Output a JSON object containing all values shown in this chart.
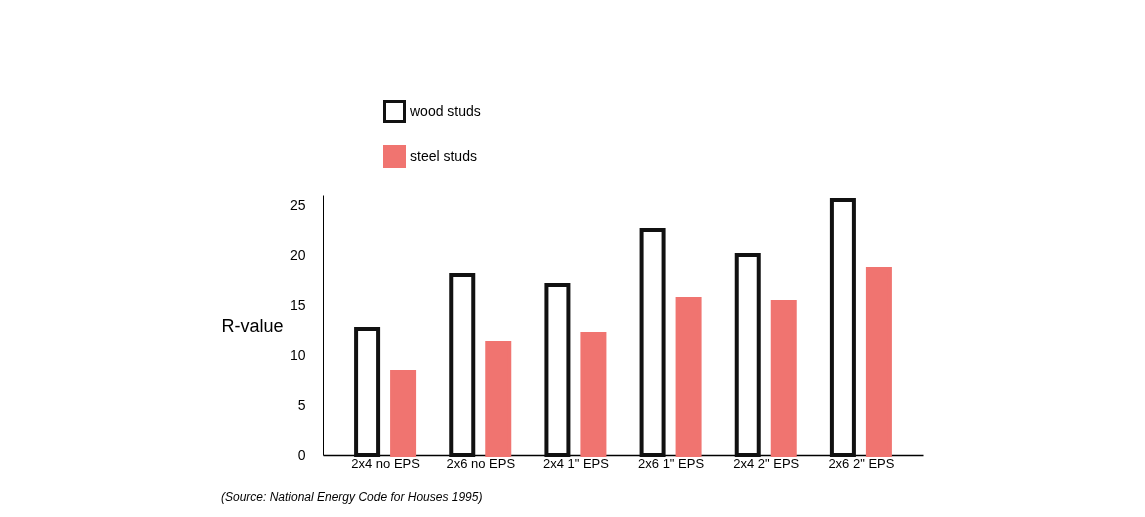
{
  "chart_data": {
    "type": "bar",
    "ylabel": "R-value",
    "categories": [
      "2x4 no EPS",
      "2x6 no EPS",
      "2x4 1\" EPS",
      "2x6 1\" EPS",
      "2x4 2\" EPS",
      "2x6 2\" EPS"
    ],
    "series": [
      {
        "name": "wood studs",
        "color": "#ffffff",
        "values": [
          12.6,
          18.0,
          17.0,
          22.5,
          20.0,
          25.5
        ]
      },
      {
        "name": "steel studs",
        "color": "#f07470",
        "values": [
          8.3,
          11.2,
          12.1,
          15.6,
          15.3,
          18.6
        ]
      }
    ],
    "yticks": [
      0,
      5,
      10,
      15,
      20,
      25
    ],
    "ylim": [
      0,
      26
    ],
    "grid": false,
    "legend": "top left",
    "annotations": [
      "(Source: National Energy Code for Houses 1995)"
    ]
  }
}
